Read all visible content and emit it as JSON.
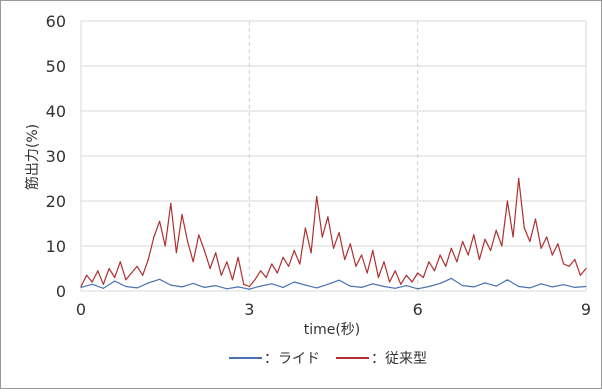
{
  "chart_data": {
    "type": "line",
    "xlabel": "time(秒)",
    "ylabel": "筋出力(%)",
    "xlim": [
      0,
      9
    ],
    "ylim": [
      0,
      60
    ],
    "x_ticks": [
      "0",
      "3",
      "6",
      "9"
    ],
    "y_ticks": [
      "0",
      "10",
      "20",
      "30",
      "40",
      "50",
      "60"
    ],
    "grid": "horizontal solid, vertical dashed",
    "legend_position": "bottom-center",
    "series": [
      {
        "name": "：ライド",
        "color": "#4a72b0",
        "x": [
          0.0,
          0.2,
          0.4,
          0.6,
          0.8,
          1.0,
          1.2,
          1.4,
          1.6,
          1.8,
          2.0,
          2.2,
          2.4,
          2.6,
          2.8,
          3.0,
          3.2,
          3.4,
          3.6,
          3.8,
          4.0,
          4.2,
          4.4,
          4.6,
          4.8,
          5.0,
          5.2,
          5.4,
          5.6,
          5.8,
          6.0,
          6.2,
          6.4,
          6.6,
          6.8,
          7.0,
          7.2,
          7.4,
          7.6,
          7.8,
          8.0,
          8.2,
          8.4,
          8.6,
          8.8,
          9.0
        ],
        "y": [
          0.8,
          1.5,
          0.6,
          2.2,
          1.0,
          0.7,
          1.8,
          2.6,
          1.3,
          0.9,
          1.7,
          0.8,
          1.2,
          0.5,
          0.9,
          0.4,
          1.1,
          1.6,
          0.8,
          2.0,
          1.3,
          0.7,
          1.5,
          2.4,
          1.1,
          0.8,
          1.6,
          1.0,
          0.6,
          1.2,
          0.5,
          1.0,
          1.7,
          2.8,
          1.2,
          0.9,
          1.8,
          1.1,
          2.5,
          1.0,
          0.7,
          1.6,
          0.9,
          1.4,
          0.8,
          1.0
        ]
      },
      {
        "name": "：従来型",
        "color": "#b03030",
        "x": [
          0.0,
          0.1,
          0.2,
          0.3,
          0.4,
          0.5,
          0.6,
          0.7,
          0.8,
          0.9,
          1.0,
          1.1,
          1.2,
          1.3,
          1.4,
          1.5,
          1.6,
          1.7,
          1.8,
          1.9,
          2.0,
          2.1,
          2.2,
          2.3,
          2.4,
          2.5,
          2.6,
          2.7,
          2.8,
          2.9,
          3.0,
          3.1,
          3.2,
          3.3,
          3.4,
          3.5,
          3.6,
          3.7,
          3.8,
          3.9,
          4.0,
          4.1,
          4.2,
          4.3,
          4.4,
          4.5,
          4.6,
          4.7,
          4.8,
          4.9,
          5.0,
          5.1,
          5.2,
          5.3,
          5.4,
          5.5,
          5.6,
          5.7,
          5.8,
          5.9,
          6.0,
          6.1,
          6.2,
          6.3,
          6.4,
          6.5,
          6.6,
          6.7,
          6.8,
          6.9,
          7.0,
          7.1,
          7.2,
          7.3,
          7.4,
          7.5,
          7.6,
          7.7,
          7.8,
          7.9,
          8.0,
          8.1,
          8.2,
          8.3,
          8.4,
          8.5,
          8.6,
          8.7,
          8.8,
          8.9,
          9.0
        ],
        "y": [
          1.0,
          3.5,
          2.0,
          4.5,
          1.5,
          5.0,
          3.0,
          6.5,
          2.5,
          4.0,
          5.5,
          3.5,
          7.0,
          12.0,
          15.5,
          10.0,
          19.5,
          8.5,
          17.0,
          11.0,
          6.5,
          12.5,
          9.0,
          5.0,
          8.5,
          3.5,
          6.5,
          2.5,
          7.5,
          1.5,
          1.0,
          2.5,
          4.5,
          3.0,
          6.0,
          4.0,
          7.5,
          5.5,
          9.0,
          6.0,
          14.0,
          8.5,
          21.0,
          12.0,
          16.5,
          9.5,
          13.0,
          7.0,
          10.5,
          5.5,
          8.0,
          4.0,
          9.0,
          3.0,
          6.5,
          2.0,
          4.5,
          1.5,
          3.5,
          2.0,
          4.0,
          3.0,
          6.5,
          4.5,
          8.0,
          5.5,
          9.5,
          6.5,
          11.0,
          8.0,
          12.5,
          7.0,
          11.5,
          9.0,
          13.5,
          10.0,
          20.0,
          12.0,
          25.0,
          14.0,
          11.0,
          16.0,
          9.5,
          12.0,
          8.0,
          10.5,
          6.0,
          5.5,
          7.0,
          3.5,
          5.0
        ]
      }
    ]
  }
}
